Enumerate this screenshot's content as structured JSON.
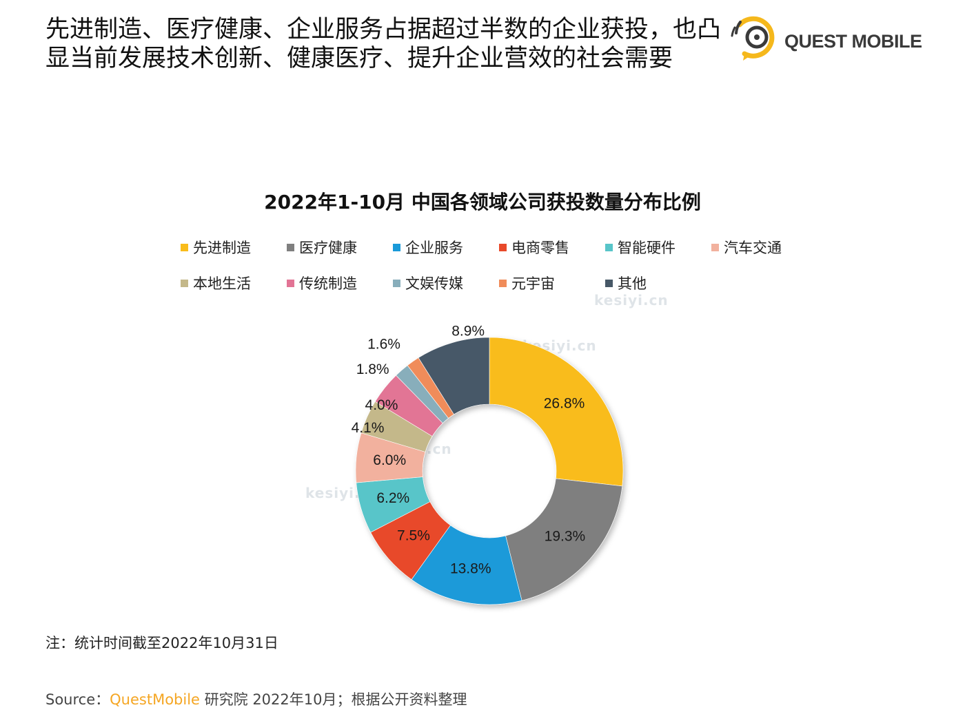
{
  "header": {
    "headline_line1": "先进制造、医疗健康、企业服务占据超过半数的企业获投，也凸",
    "headline_line2": "显当前发展技术创新、健康医疗、提升企业营效的社会需要",
    "logo_text": "QUEST MOBILE"
  },
  "colors": {
    "brand": "#f5a623",
    "text": "#111111"
  },
  "chart_data": {
    "type": "pie",
    "donut": true,
    "title": "2022年1-10月 中国各领域公司获投数量分布比例",
    "legend_placement": "top",
    "slices": [
      {
        "label": "先进制造",
        "value": 26.8,
        "value_label": "26.8%",
        "color": "#f9bc1b"
      },
      {
        "label": "医疗健康",
        "value": 19.3,
        "value_label": "19.3%",
        "color": "#7f7f7f"
      },
      {
        "label": "企业服务",
        "value": 13.8,
        "value_label": "13.8%",
        "color": "#1a9ad9"
      },
      {
        "label": "电商零售",
        "value": 7.5,
        "value_label": "7.5%",
        "color": "#e8492a"
      },
      {
        "label": "智能硬件",
        "value": 6.2,
        "value_label": "6.2%",
        "color": "#58c5c9"
      },
      {
        "label": "汽车交通",
        "value": 6.0,
        "value_label": "6.0%",
        "color": "#f2b19e"
      },
      {
        "label": "本地生活",
        "value": 4.1,
        "value_label": "4.1%",
        "color": "#c4b88a"
      },
      {
        "label": "传统制造",
        "value": 4.0,
        "value_label": "4.0%",
        "color": "#e27495"
      },
      {
        "label": "文娱传媒",
        "value": 1.8,
        "value_label": "1.8%",
        "color": "#88aebb"
      },
      {
        "label": "元宇宙",
        "value": 1.6,
        "value_label": "1.6%",
        "color": "#f08c5a"
      },
      {
        "label": "其他",
        "value": 8.9,
        "value_label": "8.9%",
        "color": "#475867"
      }
    ]
  },
  "watermark": {
    "text": "kesiyi.cn"
  },
  "footer": {
    "note": "注：统计时间截至2022年10月31日",
    "source_prefix": "Source：",
    "source_brand": "QuestMobile",
    "source_suffix": " 研究院 2022年10月；根据公开资料整理"
  }
}
